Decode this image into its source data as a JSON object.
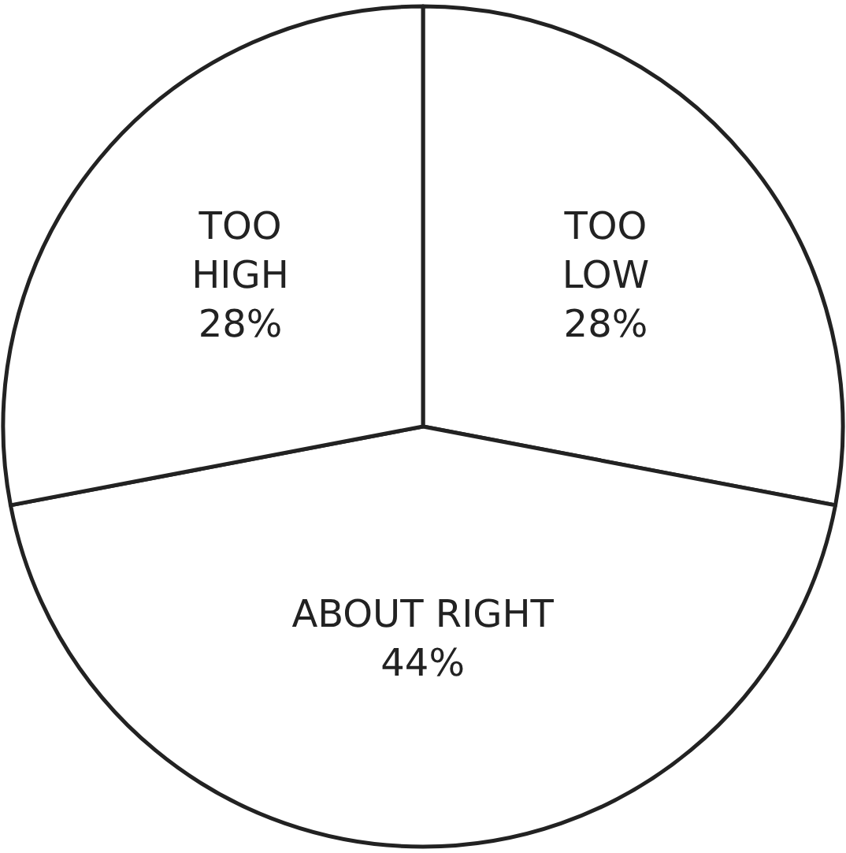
{
  "chart_data": {
    "type": "pie",
    "categories": [
      "TOO LOW",
      "ABOUT RIGHT",
      "TOO HIGH"
    ],
    "values": [
      28,
      44,
      28
    ],
    "value_labels": [
      "28%",
      "44%",
      "28%"
    ],
    "colors": [
      "#ffffff",
      "#ffffff",
      "#ffffff"
    ],
    "legend": false
  }
}
